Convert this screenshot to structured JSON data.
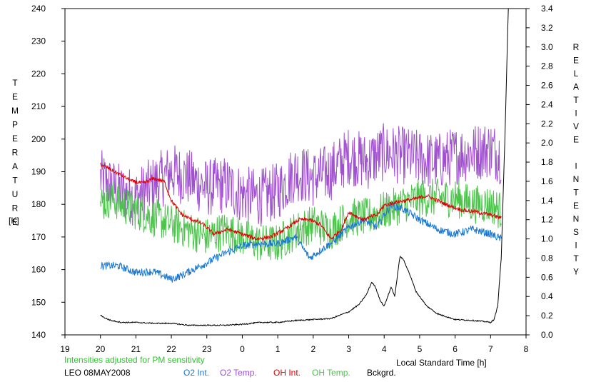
{
  "chart_data": {
    "type": "line",
    "left_axis": {
      "label": "TEMPERATURE",
      "unit": "[K]",
      "ylim": [
        140,
        240
      ],
      "ticks": [
        "140",
        "150",
        "160",
        "170",
        "180",
        "190",
        "200",
        "210",
        "220",
        "230",
        "240"
      ]
    },
    "right_axis": {
      "label": "RELATIVE INTENSITY",
      "ylim": [
        0.0,
        3.4
      ],
      "ticks": [
        "0.0",
        "0.2",
        "0.4",
        "0.6",
        "0.8",
        "1.0",
        "1.2",
        "1.4",
        "1.6",
        "1.8",
        "2.0",
        "2.2",
        "2.4",
        "2.6",
        "2.8",
        "3.0",
        "3.2",
        "3.4"
      ]
    },
    "x_axis": {
      "label": "Local Standard Time [h]",
      "xlim": [
        19,
        32
      ],
      "ticks": [
        {
          "x": 19,
          "label": "19"
        },
        {
          "x": 20,
          "label": "20"
        },
        {
          "x": 21,
          "label": "21"
        },
        {
          "x": 22,
          "label": "22"
        },
        {
          "x": 23,
          "label": "23"
        },
        {
          "x": 24,
          "label": "0"
        },
        {
          "x": 25,
          "label": "1"
        },
        {
          "x": 26,
          "label": "2"
        },
        {
          "x": 27,
          "label": "3"
        },
        {
          "x": 28,
          "label": "4"
        },
        {
          "x": 29,
          "label": "5"
        },
        {
          "x": 30,
          "label": "6"
        },
        {
          "x": 31,
          "label": "7"
        },
        {
          "x": 32,
          "label": "8"
        }
      ]
    },
    "note": "Intensities adjusted for PM sensitivity",
    "station": "LEO 08MAY2008",
    "grid": false,
    "legend_position": "bottom",
    "series": [
      {
        "name": "O2 Int.",
        "axis": "right",
        "color": "#1a78d2",
        "noise": 0.04,
        "x": [
          20.0,
          20.5,
          21.0,
          21.5,
          22.0,
          22.3,
          22.6,
          23.0,
          23.5,
          24.0,
          24.5,
          25.0,
          25.5,
          25.9,
          26.2,
          26.6,
          27.0,
          27.4,
          27.8,
          28.0,
          28.2,
          28.5,
          29.0,
          29.5,
          30.0,
          30.5,
          31.0,
          31.3
        ],
        "y": [
          0.72,
          0.72,
          0.65,
          0.66,
          0.58,
          0.62,
          0.68,
          0.75,
          0.85,
          0.93,
          0.95,
          0.95,
          1.02,
          0.8,
          0.88,
          0.98,
          1.12,
          1.2,
          1.12,
          1.25,
          1.35,
          1.32,
          1.2,
          1.1,
          1.05,
          1.1,
          1.05,
          1.0
        ]
      },
      {
        "name": "O2 Temp.",
        "axis": "left",
        "color": "#a050d0",
        "noise": 9,
        "x": [
          20.0,
          20.5,
          21.0,
          21.5,
          22.0,
          22.5,
          23.0,
          23.5,
          24.0,
          24.5,
          25.0,
          25.5,
          26.0,
          26.5,
          27.0,
          27.5,
          28.0,
          28.5,
          29.0,
          29.5,
          30.0,
          30.5,
          31.0,
          31.3
        ],
        "y": [
          188,
          184,
          182,
          186,
          190,
          188,
          185,
          186,
          183,
          182,
          184,
          190,
          188,
          190,
          195,
          193,
          196,
          195,
          194,
          193,
          195,
          196,
          197,
          195
        ]
      },
      {
        "name": "OH Int.",
        "axis": "right",
        "color": "#e00000",
        "noise": 0.02,
        "x": [
          20.0,
          20.3,
          20.6,
          20.9,
          21.2,
          21.5,
          21.8,
          22.0,
          22.3,
          22.6,
          22.9,
          23.2,
          23.6,
          24.0,
          24.4,
          24.8,
          25.2,
          25.6,
          25.9,
          26.2,
          26.5,
          26.8,
          27.0,
          27.4,
          27.8,
          28.0,
          28.3,
          28.6,
          28.9,
          29.2,
          29.5,
          29.8,
          30.2,
          30.6,
          31.0,
          31.3
        ],
        "y": [
          1.78,
          1.72,
          1.66,
          1.6,
          1.58,
          1.63,
          1.6,
          1.4,
          1.25,
          1.2,
          1.15,
          1.05,
          1.1,
          1.05,
          1.0,
          1.02,
          1.1,
          1.2,
          1.2,
          1.15,
          1.0,
          1.1,
          1.28,
          1.2,
          1.25,
          1.35,
          1.38,
          1.4,
          1.42,
          1.45,
          1.4,
          1.35,
          1.3,
          1.28,
          1.25,
          1.22
        ]
      },
      {
        "name": "OH Temp.",
        "axis": "left",
        "color": "#4cc44c",
        "noise": 6,
        "x": [
          20.0,
          20.3,
          20.6,
          21.0,
          21.5,
          22.0,
          22.5,
          23.0,
          23.5,
          24.0,
          24.5,
          25.0,
          25.5,
          26.0,
          26.5,
          27.0,
          27.5,
          28.0,
          28.5,
          29.0,
          29.5,
          30.0,
          30.5,
          31.0,
          31.3
        ],
        "y": [
          180,
          182,
          180,
          178,
          176,
          174,
          172,
          170,
          172,
          170,
          168,
          168,
          172,
          174,
          172,
          176,
          176,
          178,
          180,
          182,
          182,
          182,
          180,
          180,
          178
        ]
      },
      {
        "name": "Bckgrd.",
        "axis": "right",
        "color": "#000000",
        "noise": 0.006,
        "x": [
          20.0,
          20.1,
          20.3,
          20.6,
          21.0,
          21.5,
          22.0,
          22.5,
          23.0,
          23.5,
          24.0,
          24.5,
          25.0,
          25.5,
          26.0,
          26.5,
          27.0,
          27.3,
          27.5,
          27.65,
          27.75,
          27.9,
          28.0,
          28.1,
          28.2,
          28.3,
          28.4,
          28.45,
          28.55,
          28.7,
          28.9,
          29.2,
          29.5,
          30.0,
          30.5,
          30.8,
          31.0,
          31.1,
          31.2,
          31.3,
          31.4,
          31.5
        ],
        "y": [
          0.21,
          0.18,
          0.15,
          0.13,
          0.13,
          0.12,
          0.12,
          0.1,
          0.1,
          0.1,
          0.11,
          0.13,
          0.13,
          0.15,
          0.16,
          0.17,
          0.24,
          0.32,
          0.42,
          0.55,
          0.5,
          0.35,
          0.3,
          0.4,
          0.5,
          0.4,
          0.7,
          0.82,
          0.78,
          0.65,
          0.45,
          0.3,
          0.22,
          0.16,
          0.15,
          0.14,
          0.13,
          0.16,
          0.3,
          0.8,
          2.0,
          3.4
        ]
      }
    ]
  }
}
